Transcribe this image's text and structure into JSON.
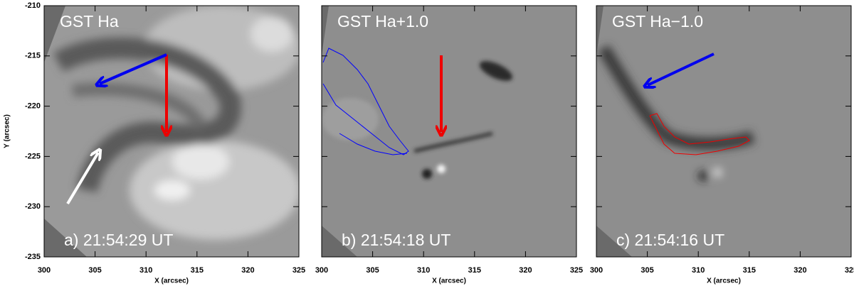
{
  "figure": {
    "x_label": "X (arcsec)",
    "y_label": "Y (arcsec)",
    "xlim": [
      300,
      325
    ],
    "xticks": [
      300,
      305,
      310,
      315,
      320,
      325
    ],
    "ylim": [
      -235,
      -210
    ],
    "yticks": [
      -235,
      -230,
      -225,
      -220,
      -215,
      -210
    ],
    "panels": [
      {
        "title": "GST Ha",
        "caption": "a) 21:54:29 UT"
      },
      {
        "title": "GST Ha+1.0",
        "caption": "b) 21:54:18 UT"
      },
      {
        "title": "GST Ha−1.0",
        "caption": "c) 21:54:16 UT"
      }
    ]
  }
}
